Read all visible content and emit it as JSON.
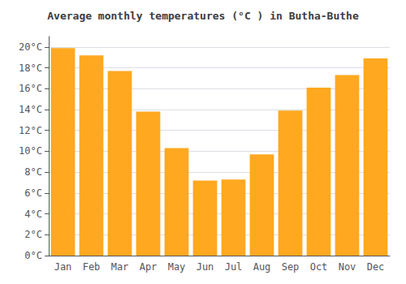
{
  "chart_data": {
    "type": "bar",
    "title": "Average monthly temperatures (°C ) in Butha-Buthe",
    "categories": [
      "Jan",
      "Feb",
      "Mar",
      "Apr",
      "May",
      "Jun",
      "Jul",
      "Aug",
      "Sep",
      "Oct",
      "Nov",
      "Dec"
    ],
    "values": [
      19.9,
      19.2,
      17.7,
      13.8,
      10.3,
      7.2,
      7.3,
      9.7,
      13.9,
      16.1,
      17.3,
      18.9
    ],
    "color": "#FFA820",
    "ylim": [
      0,
      21
    ],
    "yticks": [
      {
        "value": 0,
        "label": "0°C"
      },
      {
        "value": 2,
        "label": "2°C"
      },
      {
        "value": 4,
        "label": "4°C"
      },
      {
        "value": 6,
        "label": "6°C"
      },
      {
        "value": 8,
        "label": "8°C"
      },
      {
        "value": 10,
        "label": "10°C"
      },
      {
        "value": 12,
        "label": "12°C"
      },
      {
        "value": 14,
        "label": "14°C"
      },
      {
        "value": 16,
        "label": "16°C"
      },
      {
        "value": 18,
        "label": "18°C"
      },
      {
        "value": 20,
        "label": "20°C"
      }
    ],
    "grid": true
  }
}
